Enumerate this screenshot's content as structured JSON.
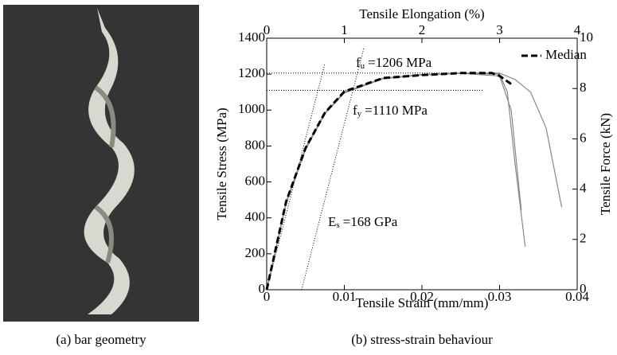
{
  "caption_a": "(a) bar geometry",
  "chart_data": {
    "type": "line",
    "caption": "(b) stress-strain behaviour",
    "xlabel": "Tensile Strain (mm/mm)",
    "ylabel": "Tensile Stress (MPa)",
    "x2label": "Tensile Elongation (%)",
    "y2label": "Tensile Force (kN)",
    "xlim": [
      0,
      0.04
    ],
    "xticks": [
      0,
      0.01,
      0.02,
      0.03,
      0.04
    ],
    "ylim": [
      0,
      1400
    ],
    "yticks": [
      0,
      200,
      400,
      600,
      800,
      1000,
      1200,
      1400
    ],
    "x2lim": [
      0,
      4
    ],
    "x2ticks": [
      0,
      1,
      2,
      3,
      4
    ],
    "y2lim": [
      0,
      10
    ],
    "y2ticks": [
      0,
      2,
      4,
      6,
      8,
      10
    ],
    "series": [
      {
        "color": "#888888",
        "style": "solid",
        "x": [
          0,
          0.0025,
          0.005,
          0.0075,
          0.01,
          0.015,
          0.02,
          0.025,
          0.03,
          0.031,
          0.032,
          0.0333
        ],
        "values": [
          0,
          480,
          780,
          980,
          1095,
          1175,
          1195,
          1205,
          1200,
          1100,
          700,
          240
        ]
      },
      {
        "color": "#888888",
        "style": "solid",
        "x": [
          0,
          0.0025,
          0.005,
          0.0075,
          0.01,
          0.015,
          0.02,
          0.025,
          0.03,
          0.032,
          0.034,
          0.036,
          0.038
        ],
        "values": [
          0,
          490,
          790,
          985,
          1100,
          1178,
          1198,
          1206,
          1205,
          1170,
          1100,
          900,
          460
        ]
      },
      {
        "color": "#888888",
        "style": "solid",
        "x": [
          0,
          0.0025,
          0.005,
          0.0075,
          0.01,
          0.015,
          0.02,
          0.025,
          0.03,
          0.0315,
          0.0328
        ],
        "values": [
          0,
          485,
          785,
          982,
          1098,
          1176,
          1196,
          1204,
          1190,
          1000,
          440
        ]
      },
      {
        "name": "Median",
        "color": "#000000",
        "style": "dashed",
        "x": [
          0,
          0.0025,
          0.005,
          0.0075,
          0.01,
          0.015,
          0.02,
          0.025,
          0.029,
          0.03,
          0.0315
        ],
        "values": [
          0,
          490,
          788,
          985,
          1103,
          1178,
          1195,
          1206,
          1206,
          1190,
          1145
        ]
      }
    ],
    "reference_lines": [
      {
        "x": [
          0,
          0.028
        ],
        "values": [
          1110,
          1110
        ]
      },
      {
        "x": [
          0,
          0.03
        ],
        "values": [
          1206,
          1206
        ]
      },
      {
        "x": [
          0,
          0.0075
        ],
        "values": [
          0,
          1260
        ]
      },
      {
        "x": [
          0.0045,
          0.0125
        ],
        "values": [
          0,
          1344
        ]
      }
    ],
    "annotations": [
      {
        "symbol": "f",
        "sub": "u",
        "text": "=1206 MPa"
      },
      {
        "symbol": "f",
        "sub": "y",
        "text": "=1110 MPa"
      },
      {
        "symbol": "E",
        "sub": "s",
        "text": "=168 GPa"
      }
    ],
    "legend": "upper right"
  }
}
